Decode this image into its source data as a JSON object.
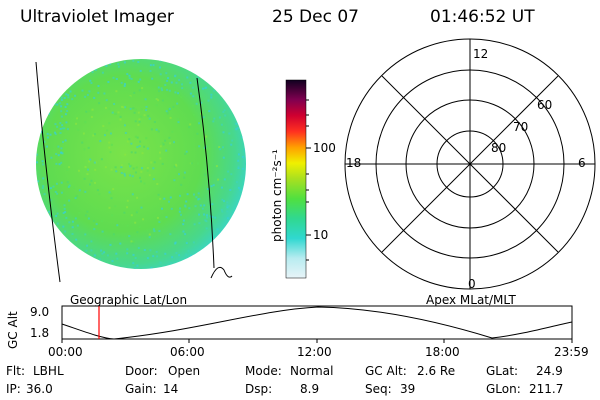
{
  "header": {
    "title": "Ultraviolet Imager",
    "date": "25 Dec 07",
    "time": "01:46:52 UT"
  },
  "colorbar": {
    "unit_label": "photon cm⁻²s⁻¹",
    "ticks": [
      "100",
      "10"
    ]
  },
  "polar": {
    "mlt_labels": [
      "12",
      "18",
      "6",
      "0"
    ],
    "lat_labels": [
      "60",
      "70",
      "80"
    ]
  },
  "captions": {
    "left": "Geographic Lat/Lon",
    "right": "Apex MLat/MLT"
  },
  "timeline": {
    "axis_label": "GC Alt",
    "y_ticks": [
      "9.0",
      "1.8"
    ],
    "x_ticks": [
      "00:00",
      "06:00",
      "12:00",
      "18:00",
      "23:59"
    ]
  },
  "info": {
    "row1": [
      {
        "label": "Flt:",
        "value": "LBHL"
      },
      {
        "label": "Door:",
        "value": "Open"
      },
      {
        "label": "Mode:",
        "value": "Normal"
      },
      {
        "label": "GC Alt:",
        "value": "2.6 Re"
      },
      {
        "label": "GLat:",
        "value": "24.9"
      }
    ],
    "row2": [
      {
        "label": "IP:",
        "value": "36.0"
      },
      {
        "label": "Gain:",
        "value": "14"
      },
      {
        "label": "Dsp:",
        "value": "8.9"
      },
      {
        "label": "Seq:",
        "value": "39"
      },
      {
        "label": "GLon:",
        "value": "211.7"
      }
    ]
  },
  "colors": {
    "disk_fill": "#66e04a",
    "disk_edge": "#3cd8c8",
    "marker": "#ff0000"
  }
}
